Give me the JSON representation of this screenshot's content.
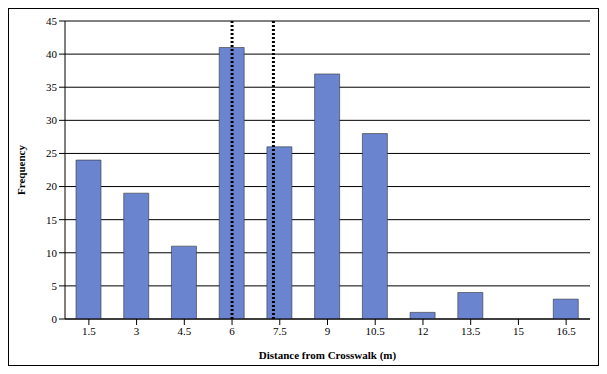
{
  "chart_data": {
    "type": "bar",
    "x": [
      1.5,
      3,
      4.5,
      6,
      7.5,
      9,
      10.5,
      12,
      13.5,
      15,
      16.5
    ],
    "values": [
      24,
      19,
      11,
      41,
      26,
      37,
      28,
      1,
      4,
      0,
      3
    ],
    "xlabel": "Distance from Crosswalk (m)",
    "ylabel": "Frequency",
    "xlim": [
      0.75,
      17.25
    ],
    "xticks": [
      1.5,
      3,
      4.5,
      6,
      7.5,
      9,
      10.5,
      12,
      13.5,
      15,
      16.5
    ],
    "ylim": [
      0,
      45
    ],
    "yticks": [
      0,
      5,
      10,
      15,
      20,
      25,
      30,
      35,
      40,
      45
    ],
    "grid": true,
    "color": "#6b84d0",
    "reference_lines": [
      6,
      7.3
    ],
    "line_style": "dotted"
  }
}
